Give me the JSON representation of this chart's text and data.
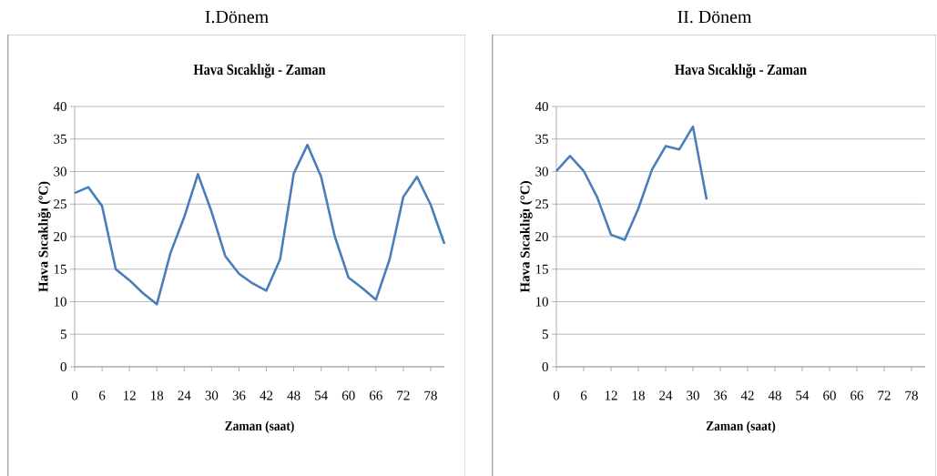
{
  "chart_data": [
    {
      "type": "line",
      "title": "I.Dönem",
      "subtitle": "Hava Sıcaklığı - Zaman",
      "xlabel": "Zaman (saat)",
      "ylabel": "Hava Sıcaklığı (ºC)",
      "x": [
        0,
        3,
        6,
        9,
        12,
        15,
        18,
        21,
        24,
        27,
        30,
        33,
        36,
        39,
        42,
        45,
        48,
        51,
        54,
        57,
        60,
        63,
        66,
        69,
        72,
        75,
        78,
        81
      ],
      "series": [
        {
          "color": "#4a7ebb",
          "values": [
            26.7,
            27.6,
            24.7,
            15.0,
            13.3,
            11.3,
            9.6,
            17.5,
            23,
            29.6,
            23.8,
            17,
            14.3,
            12.8,
            11.7,
            16.5,
            29.7,
            34.1,
            29.2,
            20,
            13.7,
            12.1,
            10.3,
            16.5,
            26.1,
            29.2,
            24.9,
            18.9
          ]
        }
      ],
      "xlim": [
        0,
        81
      ],
      "xticks": [
        0,
        6,
        12,
        18,
        24,
        30,
        36,
        42,
        48,
        54,
        60,
        66,
        72,
        78
      ],
      "ylim": [
        0,
        40
      ],
      "yticks": [
        0,
        5,
        10,
        15,
        20,
        25,
        30,
        35,
        40
      ],
      "grid": "y",
      "marker": "none",
      "line_style": "solid"
    },
    {
      "type": "line",
      "title": "II. Dönem",
      "subtitle": "Hava Sıcaklığı - Zaman",
      "xlabel": "Zaman (saat)",
      "ylabel": "Hava Sıcaklığı (°C)",
      "x": [
        0,
        3,
        6,
        9,
        12,
        15,
        18,
        21,
        24,
        27,
        30,
        33
      ],
      "series": [
        {
          "color": "#4a7ebb",
          "values": [
            30.1,
            32.4,
            30.1,
            26,
            20.3,
            19.5,
            24.3,
            30.3,
            33.9,
            33.4,
            36.9,
            25.7
          ]
        }
      ],
      "xlim": [
        0,
        81
      ],
      "xticks": [
        0,
        6,
        12,
        18,
        24,
        30,
        36,
        42,
        48,
        54,
        60,
        66,
        72,
        78
      ],
      "ylim": [
        0,
        40
      ],
      "yticks": [
        0,
        5,
        10,
        15,
        20,
        25,
        30,
        35,
        40
      ],
      "grid": "y",
      "marker": "none",
      "line_style": "solid"
    }
  ]
}
